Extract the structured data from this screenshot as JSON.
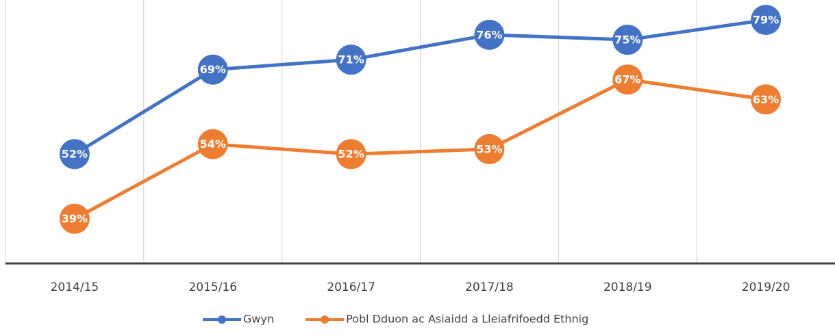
{
  "chart_data": {
    "type": "line",
    "categories": [
      "2014/15",
      "2015/16",
      "2016/17",
      "2017/18",
      "2018/19",
      "2019/20"
    ],
    "series": [
      {
        "name": "Gwyn",
        "color": "#4472c4",
        "values": [
          52,
          69,
          71,
          76,
          75,
          79
        ],
        "value_labels": [
          "52%",
          "69%",
          "71%",
          "76%",
          "75%",
          "79%"
        ]
      },
      {
        "name": "Pobl Dduon ac Asiaidd a Lleiafrifoedd Ethnig",
        "color": "#ed7d31",
        "values": [
          39,
          54,
          52,
          53,
          67,
          63
        ],
        "value_labels": [
          "39%",
          "54%",
          "52%",
          "53%",
          "67%",
          "63%"
        ]
      }
    ],
    "ylim": [
      30,
      83
    ]
  }
}
